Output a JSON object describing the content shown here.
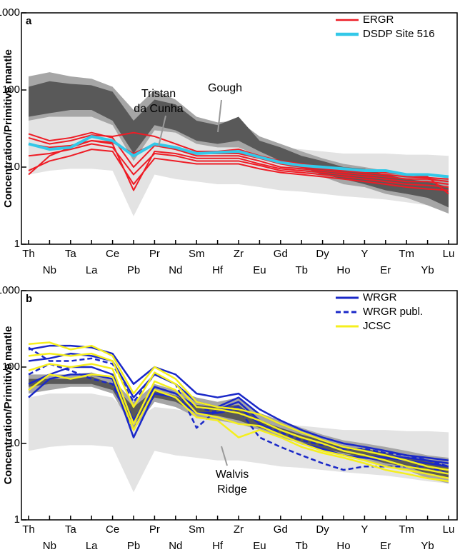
{
  "chart_data": [
    {
      "type": "line",
      "panel": "a",
      "ylabel": "Concentration/Primitive mantle",
      "log_scale": true,
      "legend": "upper right",
      "categories": [
        "Th",
        "Nb",
        "Ta",
        "La",
        "Ce",
        "Pb",
        "Pr",
        "Nd",
        "Sm",
        "Hf",
        "Zr",
        "Eu",
        "Gd",
        "Tb",
        "Dy",
        "Ho",
        "Y",
        "Er",
        "Tm",
        "Yb",
        "Lu"
      ],
      "ylim": [
        1,
        1000
      ],
      "yticks": [
        1,
        10,
        100,
        1000
      ],
      "fields": [
        {
          "color": "#e3e3e3",
          "upper": [
            40,
            45,
            45,
            45,
            40,
            20,
            30,
            28,
            25,
            23,
            22,
            20,
            18,
            17,
            16,
            15,
            15,
            15,
            14.5,
            14.5,
            14
          ],
          "lower": [
            8,
            9,
            9.5,
            9.5,
            9,
            2.3,
            8,
            7,
            6.5,
            6,
            6,
            5.5,
            5,
            4.8,
            4.5,
            4.2,
            4,
            3.8,
            3.5,
            3.2,
            3
          ]
        },
        {
          "color": "#a6a6a6",
          "label": [
            "Gough"
          ],
          "upper": [
            150,
            170,
            150,
            140,
            110,
            55,
            100,
            75,
            45,
            38,
            40,
            25,
            20,
            16,
            13,
            11,
            10,
            9,
            8,
            7.5,
            7
          ],
          "lower": [
            40,
            45,
            45,
            45,
            35,
            12,
            30,
            28,
            20,
            18,
            18,
            14,
            11,
            9,
            7.5,
            6,
            5.5,
            4.5,
            4,
            3.2,
            2.5
          ]
        },
        {
          "color": "#595959",
          "label": [
            "Tristan",
            "da Cunha"
          ],
          "upper": [
            110,
            130,
            120,
            115,
            95,
            40,
            75,
            65,
            40,
            35,
            45,
            22,
            18,
            14,
            12,
            10,
            9.5,
            8,
            7,
            6.5,
            5.5
          ],
          "lower": [
            45,
            50,
            55,
            55,
            40,
            15,
            35,
            30,
            22,
            20,
            22,
            16,
            12,
            10,
            8,
            7,
            6,
            5,
            4.5,
            4,
            3
          ]
        }
      ],
      "series": [
        {
          "name": "ERGR",
          "color": "#ee1c25",
          "width": 2,
          "lines": [
            [
              27,
              22,
              24,
              28,
              24,
              10,
              19,
              17,
              14,
              14,
              14,
              12,
              10,
              9.5,
              9,
              8.5,
              8,
              7.5,
              7,
              7,
              6.5
            ],
            [
              20,
              18,
              19,
              22,
              20,
              5,
              16,
              15,
              13,
              13,
              13,
              11,
              9.5,
              9,
              8.5,
              8,
              7.5,
              7,
              6.5,
              6.5,
              6
            ],
            [
              14,
              15,
              17,
              20,
              18,
              8,
              15,
              14,
              12,
              12,
              12,
              10.5,
              9,
              8.5,
              8,
              7.5,
              7,
              6.5,
              6,
              5.8,
              5.5
            ],
            [
              9,
              12,
              14,
              17,
              16,
              6,
              13,
              12,
              11,
              11,
              11,
              9.5,
              8.5,
              8,
              7.5,
              7,
              6.5,
              6,
              5.5,
              5.2,
              5
            ],
            [
              8,
              14,
              18,
              22,
              21,
              15,
              20,
              18,
              15,
              15,
              15,
              13,
              11,
              10,
              9.5,
              9,
              8.5,
              8,
              7.5,
              7.3,
              7
            ],
            [
              24,
              20,
              22,
              26,
              25,
              28,
              25,
              20,
              16,
              16,
              17,
              14,
              12,
              11,
              10,
              9.5,
              9,
              8.5,
              8,
              7.5,
              4.5
            ]
          ]
        },
        {
          "name": "DSDP Site 516",
          "color": "#33c8e8",
          "width": 4,
          "lines": [
            [
              20,
              17,
              18,
              25,
              22,
              14,
              20,
              18,
              15,
              15.5,
              16,
              13.5,
              11.5,
              10.5,
              10,
              9.5,
              9,
              9,
              8,
              8,
              7.5
            ]
          ]
        }
      ]
    },
    {
      "type": "line",
      "panel": "b",
      "ylabel": "Concentration/Primitive mantle",
      "log_scale": true,
      "legend": "upper right",
      "categories": [
        "Th",
        "Nb",
        "Ta",
        "La",
        "Ce",
        "Pb",
        "Pr",
        "Nd",
        "Sm",
        "Hf",
        "Zr",
        "Eu",
        "Gd",
        "Tb",
        "Dy",
        "Ho",
        "Y",
        "Er",
        "Tm",
        "Yb",
        "Lu"
      ],
      "ylim": [
        1,
        1000
      ],
      "yticks": [
        1,
        10,
        100,
        1000
      ],
      "fields": [
        {
          "color": "#e3e3e3",
          "label": [
            "Walvis",
            "Ridge"
          ],
          "upper": [
            40,
            45,
            45,
            45,
            40,
            20,
            30,
            28,
            25,
            23,
            22,
            20,
            18,
            17,
            16,
            15,
            15,
            15,
            14.5,
            14.5,
            14
          ],
          "lower": [
            8,
            9,
            9.5,
            9.5,
            9,
            2.3,
            8,
            7,
            6.5,
            6,
            6,
            5.5,
            5,
            4.8,
            4.5,
            4.2,
            4,
            3.8,
            3.5,
            3.2,
            3
          ]
        },
        {
          "color": "#a6a6a6",
          "upper": [
            80,
            80,
            80,
            85,
            70,
            35,
            60,
            50,
            40,
            35,
            40,
            25,
            20,
            16,
            13,
            11,
            10,
            9,
            8,
            7,
            6.5
          ],
          "lower": [
            45,
            50,
            55,
            55,
            45,
            15,
            35,
            30,
            22,
            20,
            18,
            15,
            12,
            10,
            8,
            7,
            6,
            5,
            4.5,
            3.5,
            3
          ]
        },
        {
          "color": "#595959",
          "upper": [
            70,
            70,
            70,
            75,
            60,
            30,
            50,
            42,
            32,
            30,
            32,
            20,
            16,
            13,
            11,
            9,
            8.5,
            7.5,
            6.5,
            6,
            5
          ],
          "lower": [
            55,
            60,
            60,
            60,
            50,
            18,
            40,
            35,
            25,
            23,
            20,
            16,
            13,
            10.5,
            8.5,
            7.5,
            6.5,
            5.5,
            5,
            4,
            3.5
          ]
        }
      ],
      "series": [
        {
          "name": "WRGR",
          "color": "#1a28c8",
          "width": 2.5,
          "lines": [
            [
              170,
              190,
              190,
              180,
              150,
              60,
              100,
              80,
              45,
              40,
              45,
              28,
              20,
              15,
              12,
              10,
              9,
              8,
              7,
              6.5,
              6
            ],
            [
              120,
              130,
              150,
              140,
              120,
              40,
              80,
              60,
              35,
              30,
              40,
              24,
              18,
              14,
              11,
              9,
              8,
              7,
              6.5,
              6,
              5.5
            ],
            [
              60,
              80,
              100,
              100,
              80,
              20,
              55,
              45,
              30,
              28,
              35,
              20,
              15,
              12,
              10,
              8,
              7,
              6.5,
              6,
              5.5,
              5
            ],
            [
              40,
              70,
              80,
              80,
              70,
              12,
              45,
              40,
              25,
              25,
              30,
              18,
              13,
              10,
              8.5,
              7,
              6.5,
              6,
              5,
              4.5,
              4
            ]
          ]
        },
        {
          "name": "WRGR publ.",
          "color": "#1a28c8",
          "width": 2.5,
          "dash": "7 4",
          "lines": [
            [
              180,
              120,
              120,
              130,
              110,
              35,
              80,
              60,
              16,
              28,
              30,
              18,
              14,
              11,
              9.5,
              8.5,
              8.5,
              7.5,
              7,
              6,
              5
            ],
            [
              80,
              110,
              90,
              70,
              60,
              15,
              55,
              45,
              30,
              25,
              28,
              12,
              9,
              7,
              5.5,
              4.5,
              5,
              5,
              5,
              5,
              4
            ]
          ]
        },
        {
          "name": "JCSC",
          "color": "#f5ef1e",
          "width": 2.5,
          "lines": [
            [
              200,
              210,
              170,
              190,
              140,
              45,
              100,
              70,
              35,
              30,
              28,
              24,
              18,
              14,
              11,
              9,
              8,
              7,
              6,
              5,
              4.5
            ],
            [
              140,
              150,
              140,
              150,
              120,
              30,
              85,
              60,
              30,
              28,
              25,
              20,
              15,
              12,
              10,
              8,
              7,
              6,
              5,
              4.5,
              4
            ],
            [
              90,
              110,
              100,
              110,
              95,
              18,
              65,
              50,
              25,
              22,
              18,
              17,
              13,
              10,
              8,
              7,
              6,
              5,
              4.5,
              4,
              3.5
            ],
            [
              50,
              80,
              70,
              80,
              75,
              15,
              50,
              40,
              22,
              20,
              12,
              15,
              12,
              9,
              7.5,
              6.5,
              5.5,
              4.5,
              4,
              3.5,
              3.2
            ]
          ]
        }
      ]
    }
  ]
}
